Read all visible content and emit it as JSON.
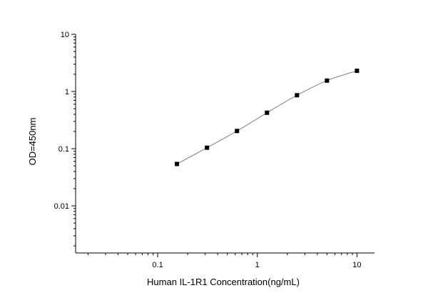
{
  "chart_data": {
    "type": "scatter",
    "x_scale": "log",
    "y_scale": "log",
    "xlim": [
      0.015,
      15
    ],
    "ylim": [
      0.0015,
      10
    ],
    "xlabel": "Human IL-1R1 Concentration(ng/mL)",
    "ylabel": "OD=450nm",
    "x_ticks": [
      {
        "value": 0.1,
        "label": "0.1"
      },
      {
        "value": 1,
        "label": "1"
      },
      {
        "value": 10,
        "label": "10"
      }
    ],
    "y_ticks": [
      {
        "value": 0.01,
        "label": "0.01"
      },
      {
        "value": 0.1,
        "label": "0.1"
      },
      {
        "value": 1,
        "label": "1"
      },
      {
        "value": 10,
        "label": "10"
      }
    ],
    "grid": false,
    "series": [
      {
        "x": [
          0.156,
          0.3125,
          0.625,
          1.25,
          2.5,
          5,
          10
        ],
        "y": [
          0.054,
          0.104,
          0.204,
          0.425,
          0.86,
          1.55,
          2.3
        ],
        "marker": "square",
        "fit_line": true,
        "color": "#000000",
        "line_color": "#808080"
      }
    ]
  }
}
